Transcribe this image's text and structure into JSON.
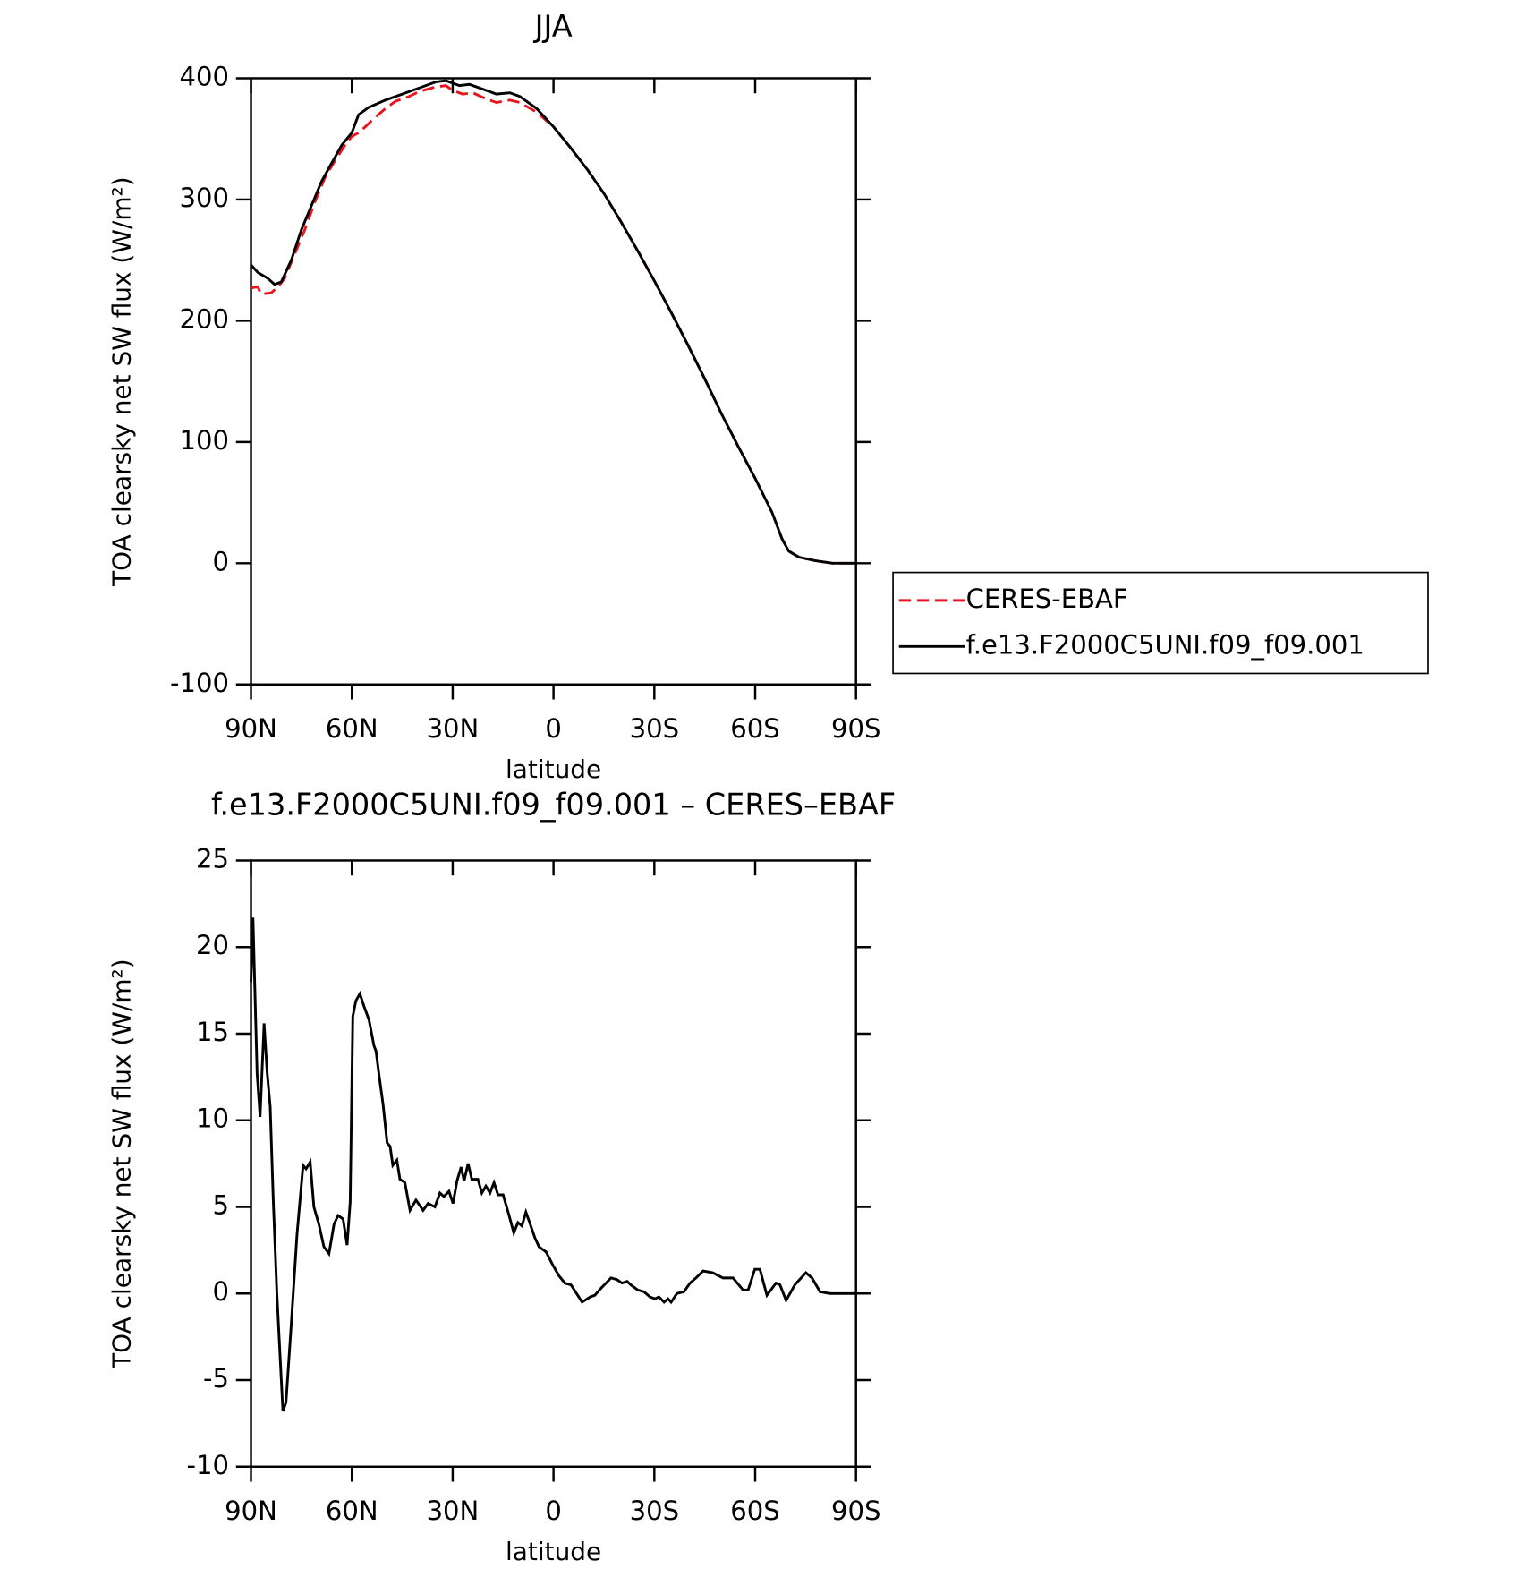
{
  "chart_data": [
    {
      "type": "line",
      "title": "JJA",
      "xlabel": "latitude",
      "ylabel": "TOA clearsky net SW flux (W/m²)",
      "xlim": [
        90,
        -90
      ],
      "xticks": [
        {
          "value": 90,
          "label": "90N"
        },
        {
          "value": 60,
          "label": "60N"
        },
        {
          "value": 30,
          "label": "30N"
        },
        0,
        {
          "value": -30,
          "label": "30S"
        },
        {
          "value": -60,
          "label": "60S"
        },
        {
          "value": -90,
          "label": "90S"
        }
      ],
      "ylim": [
        -100,
        400
      ],
      "yticks": [
        -100,
        0,
        100,
        200,
        300,
        400
      ],
      "legend": "outside-right",
      "series": [
        {
          "name": "CERES-EBAF",
          "color": "#e8141e",
          "linestyle": "dashed",
          "x": [
            90,
            88,
            87,
            84,
            82,
            80,
            77,
            74,
            71,
            68,
            65,
            62,
            60,
            58,
            56,
            53,
            50,
            47,
            43,
            40,
            35,
            32,
            30,
            27,
            24,
            20,
            17,
            13,
            10,
            5,
            0,
            -5,
            -10,
            -15,
            -20,
            -25,
            -30,
            -35,
            -40,
            -45,
            -50,
            -55,
            -60,
            -65,
            -68,
            -70,
            -73,
            -78,
            -83,
            -90
          ],
          "values": [
            227,
            228,
            222,
            223,
            228,
            235,
            255,
            275,
            298,
            318,
            332,
            345,
            352,
            355,
            360,
            368,
            375,
            381,
            385,
            389,
            393,
            394,
            390,
            387,
            388,
            383,
            380,
            382,
            380,
            372,
            360,
            343,
            325,
            305,
            282,
            258,
            233,
            207,
            180,
            152,
            123,
            96,
            70,
            42,
            20,
            10,
            5,
            2,
            0,
            0
          ]
        },
        {
          "name": "f.e13.F2000C5UNI.f09_f09.001",
          "color": "#000000",
          "linestyle": "solid",
          "x": [
            90,
            88,
            85,
            83,
            81,
            78,
            75,
            72,
            69,
            66,
            63,
            60,
            58,
            55,
            50,
            45,
            40,
            35,
            32,
            28,
            25,
            20,
            17,
            13,
            10,
            5,
            0,
            -5,
            -10,
            -15,
            -20,
            -25,
            -30,
            -35,
            -40,
            -45,
            -50,
            -55,
            -60,
            -65,
            -68,
            -70,
            -73,
            -78,
            -83,
            -90
          ],
          "values": [
            246,
            240,
            235,
            230,
            232,
            250,
            275,
            295,
            315,
            330,
            345,
            355,
            370,
            376,
            382,
            387,
            392,
            397,
            398,
            394,
            395,
            390,
            387,
            388,
            385,
            375,
            360,
            343,
            325,
            305,
            282,
            258,
            233,
            207,
            180,
            152,
            123,
            96,
            70,
            42,
            20,
            10,
            5,
            2,
            0,
            0
          ]
        }
      ]
    },
    {
      "type": "line",
      "title": "f.e13.F2000C5UNI.f09_f09.001 – CERES–EBAF",
      "xlabel": "latitude",
      "ylabel": "TOA clearsky net SW flux (W/m²)",
      "xlim": [
        90,
        -90
      ],
      "xticks": [
        {
          "value": 90,
          "label": "90N"
        },
        {
          "value": 60,
          "label": "60N"
        },
        {
          "value": 30,
          "label": "30N"
        },
        0,
        {
          "value": -30,
          "label": "30S"
        },
        {
          "value": -60,
          "label": "60S"
        },
        {
          "value": -90,
          "label": "90S"
        }
      ],
      "ylim": [
        -10,
        25
      ],
      "yticks": [
        -10,
        -5,
        0,
        5,
        10,
        15,
        20,
        25
      ],
      "series": [
        {
          "color": "#000000",
          "linestyle": "solid",
          "x": [
            90,
            89.4,
            88.2,
            87.3,
            86.1,
            85.2,
            84.3,
            83.4,
            82.3,
            80.5,
            79.6,
            78.1,
            76.3,
            74.5,
            73.6,
            72.4,
            71.3,
            69.8,
            68.3,
            66.8,
            65.3,
            64.1,
            62.6,
            61.4,
            60.5,
            59.7,
            58.8,
            57.6,
            56.4,
            54.9,
            53.4,
            52.8,
            51.9,
            50.7,
            49.5,
            48.6,
            47.8,
            46.6,
            45.7,
            44.2,
            42.7,
            40.9,
            38.8,
            37.3,
            35.3,
            33.8,
            32.6,
            31.1,
            29.9,
            28.7,
            27.5,
            26.6,
            25.4,
            24.3,
            22.5,
            21.3,
            20.1,
            18.9,
            17.7,
            16.5,
            15,
            13.2,
            11.8,
            10.6,
            9.4,
            8.2,
            7.3,
            5.5,
            4.3,
            2.2,
            0.1,
            -1.7,
            -3.4,
            -5.2,
            -8.5,
            -10.9,
            -12.3,
            -14.1,
            -17.1,
            -18.9,
            -20.4,
            -21.9,
            -23,
            -25.1,
            -26.9,
            -28.7,
            -30.2,
            -31.4,
            -32.9,
            -34.1,
            -35,
            -36.7,
            -38.8,
            -40.6,
            -42.4,
            -44.5,
            -47.4,
            -50.4,
            -53.4,
            -56.4,
            -57.9,
            -59.9,
            -61.4,
            -63.5,
            -66.2,
            -67.4,
            -69.2,
            -71.8,
            -75.1,
            -76.9,
            -79.3,
            -82.2,
            -90
          ],
          "values": [
            18,
            21.7,
            12.7,
            10.2,
            15.6,
            12.8,
            10.8,
            5.5,
            0,
            -6.8,
            -6.3,
            -2,
            3.4,
            7.4,
            7.2,
            7.6,
            5,
            4,
            2.7,
            2.3,
            4,
            4.5,
            4.3,
            2.8,
            5.3,
            16,
            16.9,
            17.3,
            16.6,
            15.8,
            14.3,
            14,
            12.6,
            10.9,
            8.7,
            8.5,
            7.4,
            7.7,
            6.6,
            6.4,
            4.8,
            5.4,
            4.8,
            5.2,
            5,
            5.8,
            5.6,
            5.9,
            5.2,
            6.5,
            7.3,
            6.5,
            7.5,
            6.6,
            6.6,
            5.8,
            6.2,
            5.8,
            6.4,
            5.7,
            5.7,
            4.5,
            3.5,
            4.1,
            3.9,
            4.7,
            4.2,
            3.2,
            2.7,
            2.4,
            1.6,
            1,
            0.6,
            0.5,
            -0.5,
            -0.2,
            -0.1,
            0.3,
            0.9,
            0.8,
            0.6,
            0.7,
            0.5,
            0.2,
            0.1,
            -0.2,
            -0.3,
            -0.2,
            -0.5,
            -0.3,
            -0.5,
            0,
            0.1,
            0.6,
            0.9,
            1.3,
            1.2,
            0.9,
            0.9,
            0.2,
            0.2,
            1.4,
            1.4,
            -0.1,
            0.6,
            0.5,
            -0.4,
            0.5,
            1.2,
            0.9,
            0.1,
            0,
            0
          ]
        }
      ]
    }
  ]
}
